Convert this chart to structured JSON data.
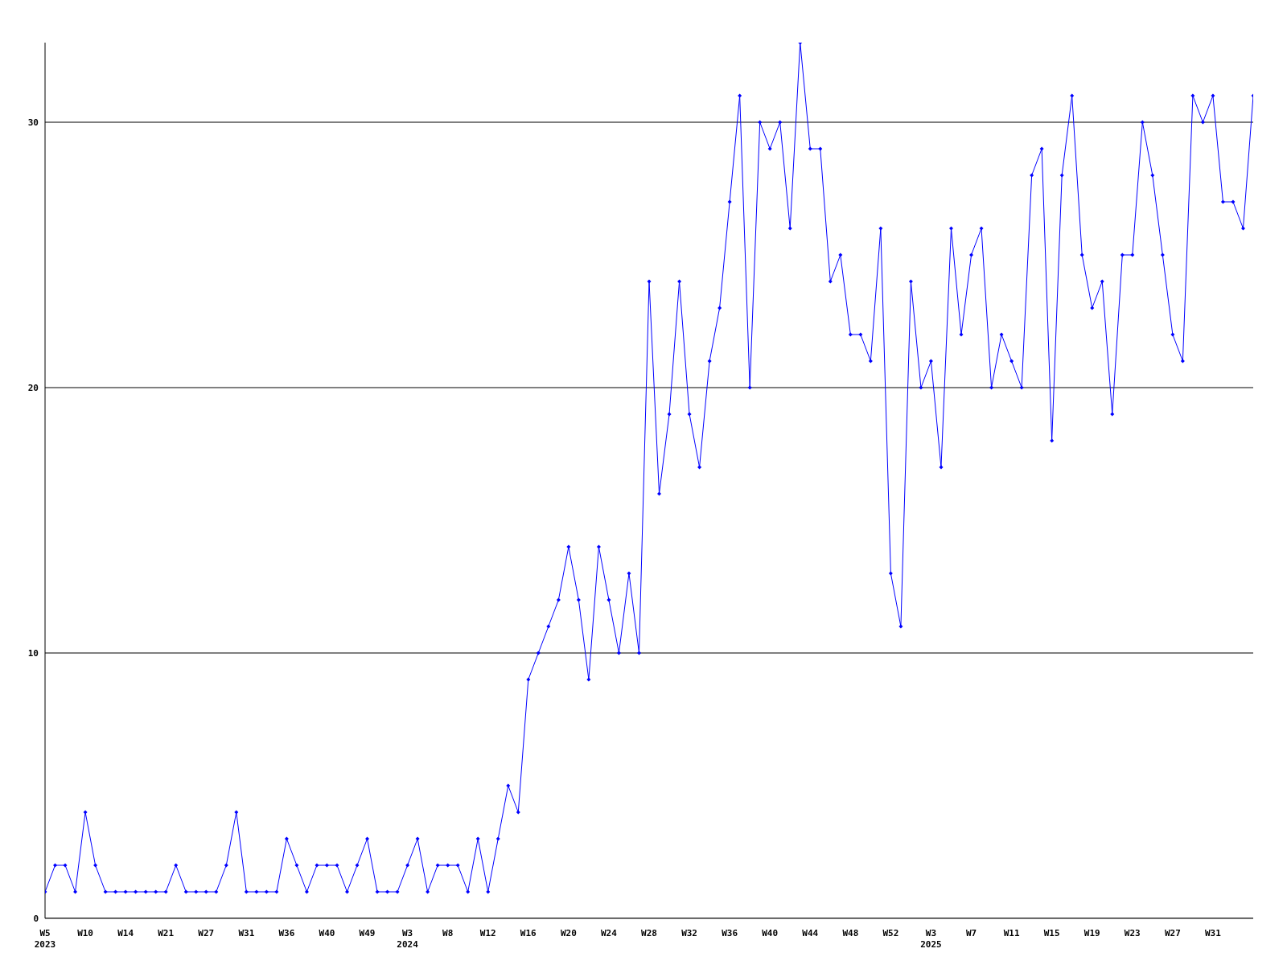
{
  "chart_data": {
    "type": "line",
    "categories": [
      "W5\n2023",
      null,
      null,
      null,
      "W10",
      null,
      null,
      null,
      "W14",
      null,
      null,
      null,
      "W21",
      null,
      null,
      null,
      "W27",
      null,
      null,
      null,
      "W31",
      null,
      null,
      null,
      "W36",
      null,
      null,
      null,
      "W40",
      null,
      null,
      null,
      "W49",
      null,
      null,
      null,
      "W3\n2024",
      null,
      null,
      null,
      "W8",
      null,
      null,
      null,
      "W12",
      null,
      null,
      null,
      "W16",
      null,
      null,
      null,
      "W20",
      null,
      null,
      null,
      "W24",
      null,
      null,
      null,
      "W28",
      null,
      null,
      null,
      "W32",
      null,
      null,
      null,
      "W36",
      null,
      null,
      null,
      "W40",
      null,
      null,
      null,
      "W44",
      null,
      null,
      null,
      "W48",
      null,
      null,
      null,
      "W52",
      null,
      null,
      null,
      "W3\n2025",
      null,
      null,
      null,
      "W7",
      null,
      null,
      null,
      "W11",
      null,
      null,
      null,
      "W15",
      null,
      null,
      null,
      "W19",
      null,
      null,
      null,
      "W23",
      null,
      null,
      null,
      "W27",
      null,
      null,
      null,
      "W31",
      null,
      null,
      null,
      null
    ],
    "series": [
      {
        "color": "#0000ff",
        "values": [
          1,
          2,
          2,
          1,
          4,
          2,
          1,
          1,
          1,
          1,
          1,
          1,
          1,
          2,
          1,
          1,
          1,
          1,
          2,
          4,
          1,
          1,
          1,
          1,
          3,
          2,
          1,
          2,
          2,
          2,
          1,
          2,
          3,
          1,
          1,
          1,
          2,
          3,
          1,
          2,
          2,
          2,
          1,
          3,
          1,
          3,
          5,
          4,
          9,
          10,
          11,
          12,
          14,
          12,
          9,
          14,
          12,
          10,
          13,
          10,
          24,
          16,
          19,
          24,
          19,
          17,
          21,
          23,
          27,
          31,
          20,
          30,
          29,
          30,
          26,
          33,
          29,
          29,
          24,
          25,
          22,
          22,
          21,
          26,
          13,
          11,
          24,
          20,
          21,
          17,
          26,
          22,
          25,
          26,
          20,
          22,
          21,
          20,
          28,
          29,
          18,
          28,
          31,
          25,
          23,
          24,
          19,
          25,
          25,
          30,
          28,
          25,
          22,
          21,
          31,
          30,
          31,
          27,
          27,
          26,
          31
        ]
      }
    ],
    "ylim": [
      0,
      33
    ],
    "yticks": [
      0,
      10,
      20,
      30
    ],
    "grid": "y",
    "marker": "diamond",
    "line_style": "solid"
  }
}
